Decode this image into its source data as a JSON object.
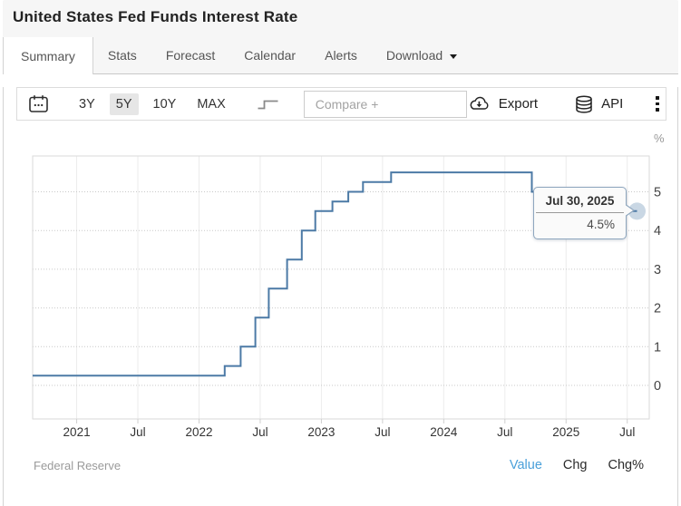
{
  "header": {
    "title": "United States Fed Funds Interest Rate"
  },
  "tabs": [
    {
      "label": "Summary",
      "active": true
    },
    {
      "label": "Stats",
      "active": false
    },
    {
      "label": "Forecast",
      "active": false
    },
    {
      "label": "Calendar",
      "active": false
    },
    {
      "label": "Alerts",
      "active": false
    },
    {
      "label": "Download",
      "active": false,
      "has_caret": true
    }
  ],
  "toolbar": {
    "ranges": [
      {
        "label": "3Y",
        "active": false
      },
      {
        "label": "5Y",
        "active": true
      },
      {
        "label": "10Y",
        "active": false
      },
      {
        "label": "MAX",
        "active": false
      }
    ],
    "compare_placeholder": "Compare +",
    "export_label": "Export",
    "api_label": "API",
    "icons": [
      "calendar-icon",
      "step-chart-icon",
      "cloud-download-icon",
      "database-icon",
      "kebab-menu-icon"
    ]
  },
  "chart_data": {
    "type": "line",
    "subtype": "step-after",
    "title": "United States Fed Funds Interest Rate",
    "unit": "%",
    "line_color": "#4c7aa6",
    "marker_halo_color": "rgba(76,122,166,0.3)",
    "grid": true,
    "legend": false,
    "x_range_years": [
      2020.64,
      2025.68
    ],
    "ylim": [
      -0.87,
      5.92
    ],
    "x_tick_years": [
      2021,
      2021.5,
      2022,
      2022.5,
      2023,
      2023.5,
      2024,
      2024.5,
      2025,
      2025.5
    ],
    "x_tick_labels": [
      "2021",
      "Jul",
      "2022",
      "Jul",
      "2023",
      "Jul",
      "2024",
      "Jul",
      "2025",
      "Jul"
    ],
    "y_ticks": [
      0,
      1,
      2,
      3,
      4,
      5
    ],
    "points": [
      [
        2020.64,
        0.25
      ],
      [
        2022.21,
        0.5
      ],
      [
        2022.34,
        1.0
      ],
      [
        2022.46,
        1.75
      ],
      [
        2022.57,
        2.5
      ],
      [
        2022.72,
        3.25
      ],
      [
        2022.84,
        4.0
      ],
      [
        2022.95,
        4.5
      ],
      [
        2023.09,
        4.75
      ],
      [
        2023.22,
        5.0
      ],
      [
        2023.34,
        5.25
      ],
      [
        2023.57,
        5.5
      ],
      [
        2024.72,
        5.0
      ],
      [
        2024.86,
        4.75
      ],
      [
        2024.97,
        4.5
      ],
      [
        2025.58,
        4.5
      ]
    ],
    "tooltip": {
      "date": "Jul 30, 2025",
      "value": "4.5%"
    }
  },
  "footer": {
    "source": "Federal Reserve",
    "modes": [
      {
        "label": "Value",
        "active": true
      },
      {
        "label": "Chg",
        "active": false
      },
      {
        "label": "Chg%",
        "active": false
      }
    ]
  }
}
